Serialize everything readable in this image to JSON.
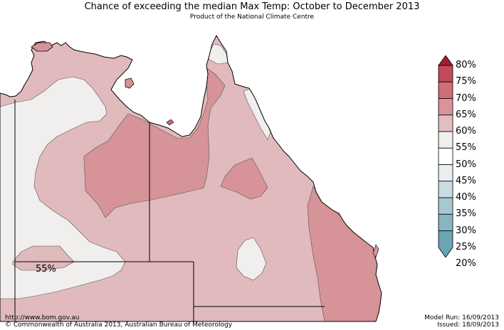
{
  "title": "Chance of exceeding the median Max Temp: October to December 2013",
  "subtitle": "Product of the National Climate Centre",
  "map_label": "55%",
  "legend": {
    "labels": [
      "80%",
      "75%",
      "70%",
      "65%",
      "60%",
      "55%",
      "50%",
      "45%",
      "40%",
      "35%",
      "30%",
      "25%",
      "20%"
    ],
    "colors": [
      "#a51c30",
      "#c24a5a",
      "#cf6e79",
      "#d99399",
      "#e4bdc0",
      "#f0efed",
      "#ffffff",
      "#e9eff1",
      "#c9dde1",
      "#a6c9d1",
      "#86b6c2",
      "#6aa5b4"
    ]
  },
  "colors": {
    "band_55_60": "#f0efed",
    "band_60_65": "#e1babd",
    "band_65_70": "#d69398",
    "band_70_75": "#c96a75"
  },
  "footer": {
    "url": "http://www.bom.gov.au",
    "copyright": "©  Commonwealth of Australia 2013, Australian Bureau of Meteorology",
    "model_run": "Model Run: 16/09/2013",
    "issued": "Issued: 18/09/2013"
  }
}
